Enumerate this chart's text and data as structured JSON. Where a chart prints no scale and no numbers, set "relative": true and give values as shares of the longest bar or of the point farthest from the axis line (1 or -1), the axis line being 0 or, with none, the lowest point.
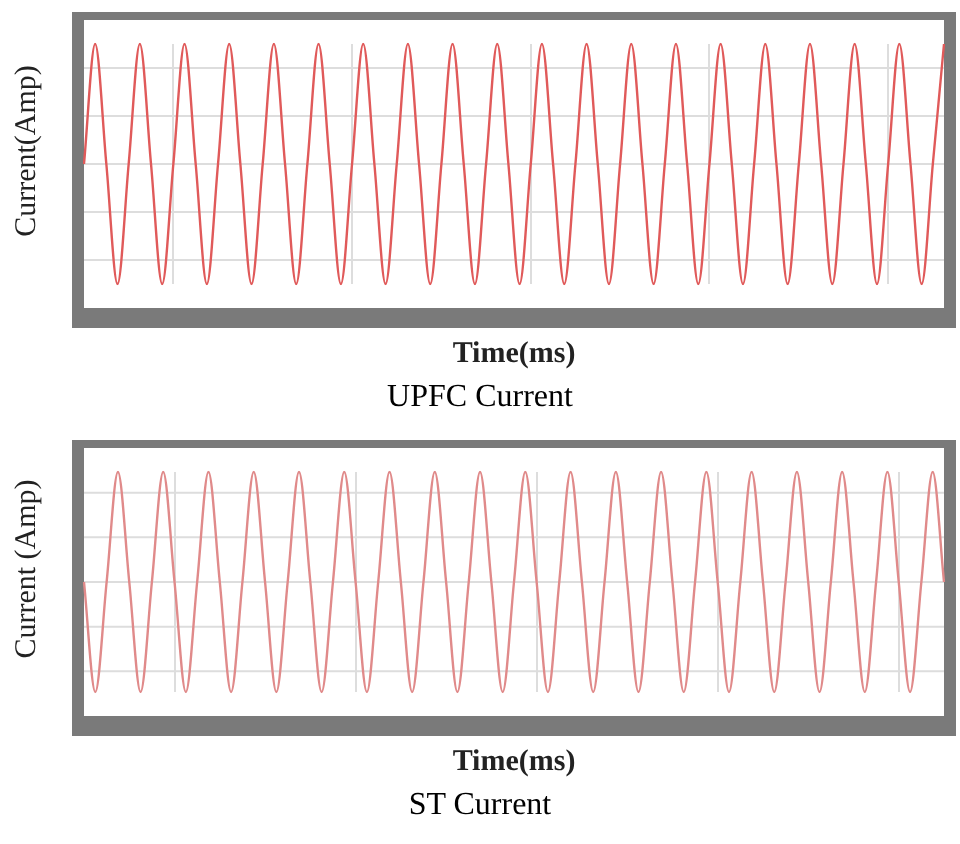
{
  "chart_data": [
    {
      "type": "line",
      "title": "UPFC Current",
      "xlabel": "Time(ms)",
      "ylabel": "Current(Amp)",
      "relative": true,
      "grid": true,
      "categories": [
        null,
        null,
        null,
        null,
        null,
        null,
        null,
        null,
        null,
        null,
        null,
        null,
        null,
        null,
        null,
        null,
        null,
        null,
        null,
        null,
        null,
        null,
        null,
        null,
        null,
        null,
        null,
        null,
        null,
        null,
        null,
        null,
        null,
        null,
        null,
        null,
        null,
        null,
        null,
        null,
        null,
        null,
        null,
        null,
        null,
        null,
        null,
        null,
        null,
        null,
        null,
        null,
        null,
        null,
        null,
        null,
        null,
        null,
        null,
        null,
        null,
        null,
        null,
        null,
        null,
        null,
        null,
        null,
        null,
        null,
        null,
        null,
        null,
        null,
        null,
        null,
        null,
        null
      ],
      "series": [
        {
          "color": "#e05a5a",
          "values": [
            0.5,
            1,
            0.5,
            0,
            0.5,
            1,
            0.5,
            0,
            0.5,
            1,
            0.5,
            0,
            0.5,
            1,
            0.5,
            0,
            0.5,
            1,
            0.5,
            0,
            0.5,
            1,
            0.5,
            0,
            0.5,
            1,
            0.5,
            0,
            0.5,
            1,
            0.5,
            0,
            0.5,
            1,
            0.5,
            0,
            0.5,
            1,
            0.5,
            0,
            0.5,
            1,
            0.5,
            0,
            0.5,
            1,
            0.5,
            0,
            0.5,
            1,
            0.5,
            0,
            0.5,
            1,
            0.5,
            0,
            0.5,
            1,
            0.5,
            0,
            0.5,
            1,
            0.5,
            0,
            0.5,
            1,
            0.5,
            0,
            0.5,
            1,
            0.5,
            0,
            0.5,
            1,
            0.5,
            0,
            0.5,
            1
          ]
        }
      ]
    },
    {
      "type": "line",
      "title": "ST Current",
      "xlabel": "Time(ms)",
      "ylabel": "Current (Amp)",
      "relative": true,
      "grid": true,
      "categories": [
        null,
        null,
        null,
        null,
        null,
        null,
        null,
        null,
        null,
        null,
        null,
        null,
        null,
        null,
        null,
        null,
        null,
        null,
        null,
        null,
        null,
        null,
        null,
        null,
        null,
        null,
        null,
        null,
        null,
        null,
        null,
        null,
        null,
        null,
        null,
        null,
        null,
        null,
        null,
        null,
        null,
        null,
        null,
        null,
        null,
        null,
        null,
        null,
        null,
        null,
        null,
        null,
        null,
        null,
        null,
        null,
        null,
        null,
        null,
        null,
        null,
        null,
        null,
        null,
        null,
        null,
        null,
        null,
        null,
        null,
        null,
        null,
        null,
        null,
        null,
        null,
        null
      ],
      "series": [
        {
          "color": "#e08a8a",
          "values": [
            0.5,
            0,
            0.5,
            1,
            0.5,
            0,
            0.5,
            1,
            0.5,
            0,
            0.5,
            1,
            0.5,
            0,
            0.5,
            1,
            0.5,
            0,
            0.5,
            1,
            0.5,
            0,
            0.5,
            1,
            0.5,
            0,
            0.5,
            1,
            0.5,
            0,
            0.5,
            1,
            0.5,
            0,
            0.5,
            1,
            0.5,
            0,
            0.5,
            1,
            0.5,
            0,
            0.5,
            1,
            0.5,
            0,
            0.5,
            1,
            0.5,
            0,
            0.5,
            1,
            0.5,
            0,
            0.5,
            1,
            0.5,
            0,
            0.5,
            1,
            0.5,
            0,
            0.5,
            1,
            0.5,
            0,
            0.5,
            1,
            0.5,
            0,
            0.5,
            1,
            0.5,
            0,
            0.5,
            1,
            0.5
          ]
        }
      ]
    }
  ]
}
